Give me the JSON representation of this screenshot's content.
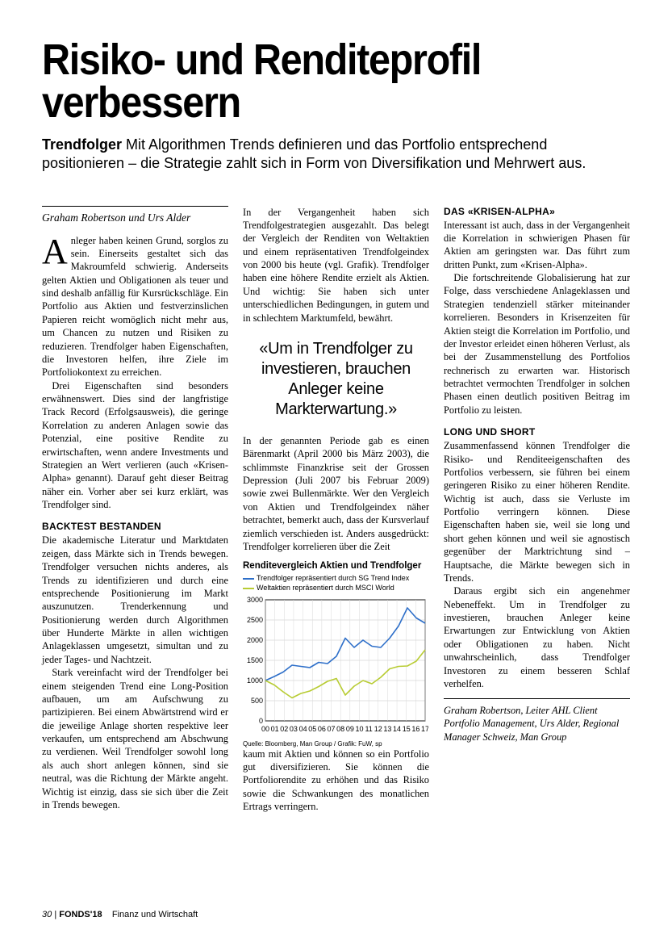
{
  "headline": "Risiko- und Renditeprofil verbessern",
  "lede_bold": "Trendfolger",
  "lede_rest": " Mit Algorithmen Trends definieren und das Portfolio entsprechend positionieren – die Strategie zahlt sich in Form von Diversifikation und Mehrwert aus.",
  "byline": "Graham Robertson und Urs Alder",
  "body": {
    "p1": "Anleger haben keinen Grund, sorglos zu sein. Einerseits gestaltet sich das Makroumfeld schwierig. Anderseits gelten Aktien und Obligationen als teuer und sind deshalb anfällig für Kursrückschläge. Ein Portfolio aus Aktien und festverzinslichen Papieren reicht womöglich nicht mehr aus, um Chancen zu nutzen und Risiken zu reduzieren. Trendfolger haben Eigenschaften, die Investoren helfen, ihre Ziele im Portfoliokontext zu erreichen.",
    "p2": "Drei Eigenschaften sind besonders erwähnenswert. Dies sind der langfristige Track Record (Erfolgsausweis), die geringe Korrelation zu anderen Anlagen sowie das Potenzial, eine positive Rendite zu erwirtschaften, wenn andere Investments und Strategien an Wert verlieren (auch «Krisen-Alpha» genannt). Darauf geht dieser Beitrag näher ein. Vorher aber sei kurz erklärt, was Trendfolger sind.",
    "h1": "BACKTEST BESTANDEN",
    "p3": "Die akademische Literatur und Marktdaten zeigen, dass Märkte sich in Trends bewegen. Trendfolger versuchen nichts anderes, als Trends zu identifizieren und durch eine entsprechende Positionierung im Markt auszunutzen. Trenderkennung und Positionierung werden durch Algorithmen über Hunderte Märkte in allen wichtigen Anlageklassen umgesetzt, simultan und zu jeder Tages- und Nachtzeit.",
    "p4": "Stark vereinfacht wird der Trendfolger bei einem steigenden Trend eine Long-Position aufbauen, um am Aufschwung zu partizipieren. Bei einem Abwärtstrend wird er die jeweilige Anlage shorten respektive leer verkaufen, um entsprechend am Abschwung zu verdienen. Weil Trendfolger sowohl long als auch short anlegen können, sind sie neutral, was die Richtung der Märkte angeht. Wichtig ist einzig, dass sie sich über die Zeit in Trends bewegen.",
    "p5": "In der Vergangenheit haben sich Trendfolgestrategien ausgezahlt. Das belegt der Vergleich der Renditen von Weltaktien und einem repräsentativen Trendfolgeindex von 2000 bis heute (vgl. Grafik). Trendfolger haben eine höhere Rendite erzielt als Aktien. Und wichtig: Sie haben sich unter unterschiedlichen Bedingungen, in gutem und in schlechtem Marktumfeld, bewährt.",
    "pull": "«Um in Trendfolger zu investieren, brauchen Anleger keine Markterwartung.»",
    "p6": "In der genannten Periode gab es einen Bärenmarkt (April 2000 bis März 2003), die schlimmste Finanzkrise seit der Grossen Depression (Juli 2007 bis Februar 2009) sowie zwei Bullenmärkte. Wer den Vergleich von Aktien und Trendfolgeindex näher betrachtet, bemerkt auch, dass der Kursverlauf ziemlich verschieden ist. Anders ausgedrückt: Trendfolger korrelieren über die Zeit",
    "p7": "kaum mit Aktien und können so ein Portfolio gut diversifizieren. Sie können die Portfoliorendite zu erhöhen und das Risiko sowie die Schwankungen des monatlichen Ertrags verringern.",
    "h2": "DAS «KRISEN-ALPHA»",
    "p8": "Interessant ist auch, dass in der Vergangenheit die Korrelation in schwierigen Phasen für Aktien am geringsten war. Das führt zum dritten Punkt, zum «Krisen-Alpha».",
    "p9": "Die fortschreitende Globalisierung hat zur Folge, dass verschiedene Anlageklassen und Strategien tendenziell stärker miteinander korrelieren. Besonders in Krisenzeiten für Aktien steigt die Korrelation im Portfolio, und der Investor erleidet einen höheren Verlust, als bei der Zusammenstellung des Portfolios rechnerisch zu erwarten war. Historisch betrachtet vermochten Trendfolger in solchen Phasen einen deutlich positiven Beitrag im Portfolio zu leisten.",
    "h3": "LONG UND SHORT",
    "p10": "Zusammenfassend können Trendfolger die Risiko- und Renditeeigenschaften des Portfolios verbessern, sie führen bei einem geringeren Risiko zu einer höheren Rendite. Wichtig ist auch, dass sie Verluste im Portfolio verringern können. Diese Eigenschaften haben sie, weil sie long und short gehen können und weil sie agnostisch gegenüber der Marktrichtung sind – Hauptsache, die Märkte bewegen sich in Trends.",
    "p11": "Daraus ergibt sich ein angenehmer Nebeneffekt. Um in Trendfolger zu investieren, brauchen Anleger keine Erwartungen zur Entwicklung von Aktien oder Obligationen zu haben. Nicht unwahrscheinlich, dass Trendfolger Investoren zu einem besseren Schlaf verhelfen."
  },
  "signoff": "Graham Robertson, Leiter AHL Client Portfolio Management, Urs Alder, Regional Manager Schweiz, Man Group",
  "chart": {
    "type": "line",
    "title": "Renditevergleich Aktien und Trendfolger",
    "legend": [
      {
        "label": "Trendfolger repräsentiert durch SG Trend Index",
        "color": "#2e6fc9"
      },
      {
        "label": "Weltaktien repräsentiert durch MSCI World",
        "color": "#b8cc33"
      }
    ],
    "source": "Quelle: Bloomberg, Man Group / Grafik: FuW, sp",
    "xlabels": [
      "00",
      "01",
      "02",
      "03",
      "04",
      "05",
      "06",
      "07",
      "08",
      "09",
      "10",
      "11",
      "12",
      "13",
      "14",
      "15",
      "16",
      "17"
    ],
    "ylim": [
      0,
      3000
    ],
    "yticks": [
      0,
      500,
      1000,
      1500,
      2000,
      2500,
      3000
    ],
    "background_color": "#ffffff",
    "grid_color": "#d9d9d9",
    "axis_color": "#000000",
    "line_width": 1.6,
    "tick_fontsize": 9,
    "series": [
      {
        "name": "trend",
        "color": "#2e6fc9",
        "values": [
          1000,
          1100,
          1210,
          1380,
          1350,
          1320,
          1450,
          1420,
          1600,
          2050,
          1820,
          2000,
          1850,
          1820,
          2050,
          2350,
          2800,
          2550,
          2420
        ]
      },
      {
        "name": "world",
        "color": "#b8cc33",
        "values": [
          1000,
          890,
          720,
          570,
          680,
          740,
          850,
          980,
          1050,
          640,
          860,
          1000,
          920,
          1080,
          1290,
          1350,
          1360,
          1480,
          1760
        ]
      }
    ]
  },
  "footer": {
    "page": "30",
    "brand": "FONDS'18",
    "pub": "Finanz und Wirtschaft"
  }
}
